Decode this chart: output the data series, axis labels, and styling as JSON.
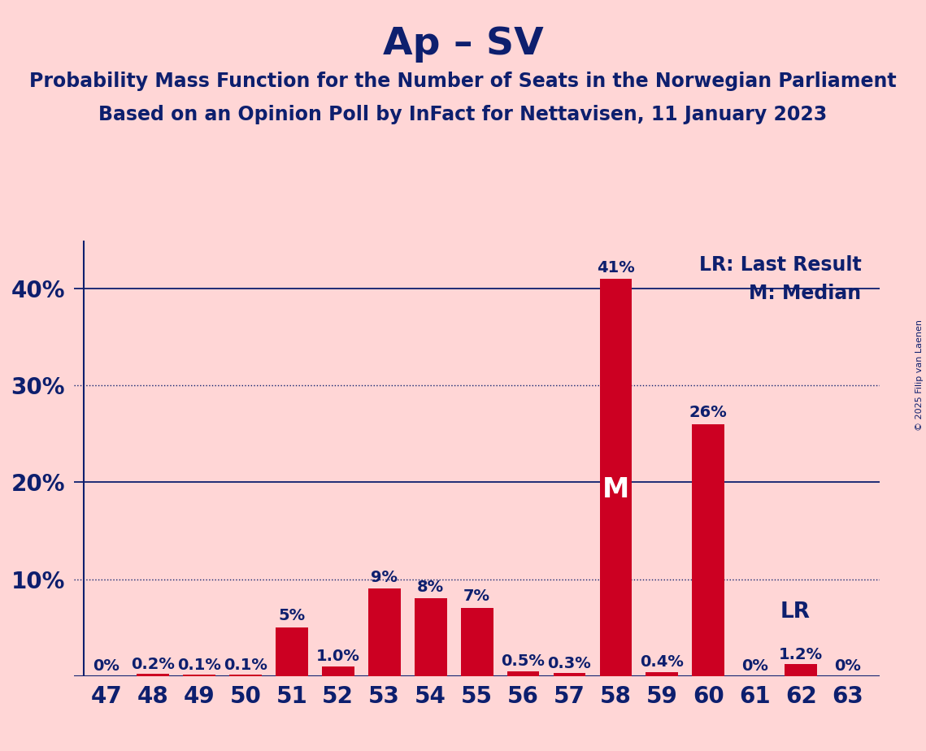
{
  "title": "Ap – SV",
  "subtitle_line1": "Probability Mass Function for the Number of Seats in the Norwegian Parliament",
  "subtitle_line2": "Based on an Opinion Poll by InFact for Nettavisen, 11 January 2023",
  "copyright": "© 2025 Filip van Laenen",
  "seats": [
    47,
    48,
    49,
    50,
    51,
    52,
    53,
    54,
    55,
    56,
    57,
    58,
    59,
    60,
    61,
    62,
    63
  ],
  "values": [
    0.0,
    0.2,
    0.1,
    0.1,
    5.0,
    1.0,
    9.0,
    8.0,
    7.0,
    0.5,
    0.3,
    41.0,
    0.4,
    26.0,
    0.0,
    1.2,
    0.0
  ],
  "labels": [
    "0%",
    "0.2%",
    "0.1%",
    "0.1%",
    "5%",
    "1.0%",
    "9%",
    "8%",
    "7%",
    "0.5%",
    "0.3%",
    "41%",
    "0.4%",
    "26%",
    "0%",
    "1.2%",
    "0%"
  ],
  "bar_color": "#CC0022",
  "background_color": "#FFD6D6",
  "title_color": "#0D1F6E",
  "subtitle_color": "#0D1F6E",
  "label_color": "#0D1F6E",
  "axis_label_color": "#0D1F6E",
  "median_seat": 58,
  "lr_seat": 61,
  "legend_lr": "LR: Last Result",
  "legend_m": "M: Median",
  "ylim": [
    0,
    45
  ],
  "yticks": [
    10,
    20,
    30,
    40
  ],
  "ytick_labels": [
    "10%",
    "20%",
    "30%",
    "40%"
  ],
  "solid_gridlines": [
    20,
    40
  ],
  "dotted_gridlines": [
    10,
    30
  ],
  "title_fontsize": 34,
  "subtitle_fontsize": 17,
  "axis_tick_fontsize": 20,
  "bar_label_fontsize": 14,
  "legend_fontsize": 17,
  "median_label_color": "#FFFFFF",
  "median_label_fontsize": 24
}
